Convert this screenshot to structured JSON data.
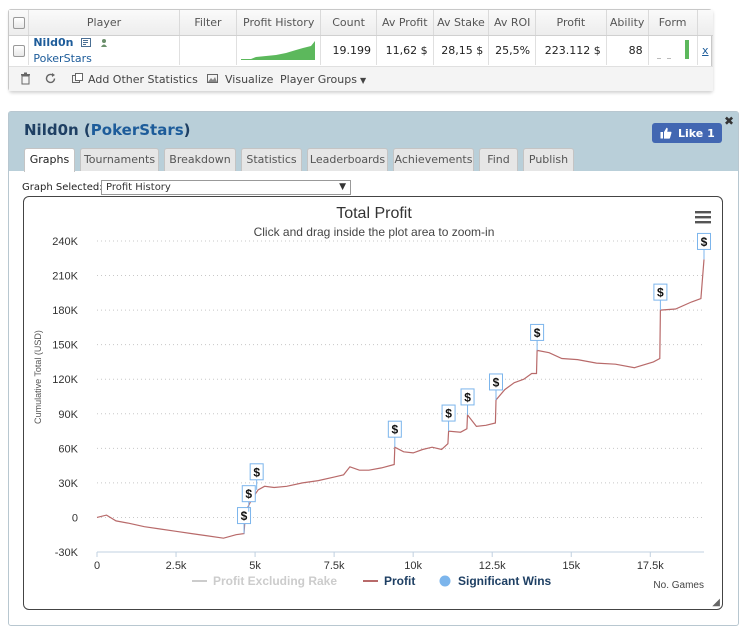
{
  "stats": {
    "columns": [
      "Player",
      "Filter",
      "Profit History",
      "Count",
      "Av Profit",
      "Av Stake",
      "Av ROI",
      "Profit",
      "Ability",
      "Form"
    ],
    "row": {
      "player_name": "Nild0n",
      "player_site": "PokerStars",
      "count": "19.199",
      "av_profit": "11,62 $",
      "av_stake": "28,15 $",
      "av_roi": "25,5%",
      "profit": "223.112 $",
      "ability": "88",
      "remove": "x"
    },
    "toolbar": {
      "add_stats": "Add Other Statistics",
      "visualize": "Visualize",
      "player_groups": "Player Groups"
    }
  },
  "panel": {
    "title_name": "Nild0n",
    "title_site": "PokerStars",
    "like_label": "Like 1",
    "close": "✖",
    "tabs": [
      "Graphs",
      "Tournaments",
      "Breakdown",
      "Statistics",
      "Leaderboards",
      "Achievements",
      "Find",
      "Publish"
    ],
    "active_tab": "Graphs",
    "graph_select_label": "Graph Selected:",
    "graph_select_value": "Profit History"
  },
  "chart_data": {
    "type": "line",
    "title": "Total Profit",
    "subtitle": "Click and drag inside the plot area to zoom-in",
    "xlabel": "No. Games",
    "ylabel": "Cumulative Total (USD)",
    "xlim": [
      0,
      19199
    ],
    "ylim": [
      -30000,
      240000
    ],
    "x_ticks": [
      0,
      2500,
      5000,
      7500,
      10000,
      12500,
      15000,
      17500
    ],
    "x_tick_labels": [
      "0",
      "2.5k",
      "5k",
      "7.5k",
      "10k",
      "12.5k",
      "15k",
      "17.5k"
    ],
    "y_ticks": [
      -30000,
      0,
      30000,
      60000,
      90000,
      120000,
      150000,
      180000,
      210000,
      240000
    ],
    "y_tick_labels": [
      "-30K",
      "0",
      "30K",
      "60K",
      "90K",
      "120K",
      "150K",
      "180K",
      "210K",
      "240K"
    ],
    "grid": true,
    "legend_position": "bottom",
    "series": [
      {
        "name": "Profit Excluding Rake",
        "color": "#cccccc",
        "hidden": true,
        "x": [],
        "y": []
      },
      {
        "name": "Profit",
        "color": "#b86a6a",
        "x": [
          0,
          300,
          600,
          1000,
          1500,
          2000,
          2500,
          3000,
          3500,
          4000,
          4400,
          4650,
          4700,
          4900,
          5100,
          5300,
          5600,
          6000,
          6500,
          7000,
          7500,
          7800,
          8000,
          8300,
          8600,
          9000,
          9400,
          9420,
          9700,
          10000,
          10300,
          10600,
          10900,
          11100,
          11120,
          11500,
          11700,
          11720,
          12000,
          12300,
          12600,
          12620,
          12900,
          13200,
          13500,
          13750,
          13900,
          13920,
          14300,
          14700,
          15200,
          15800,
          16400,
          17000,
          17600,
          17800,
          17820,
          18300,
          18800,
          19100,
          19199
        ],
        "y": [
          0,
          2000,
          -3000,
          -5000,
          -8000,
          -10000,
          -12000,
          -14000,
          -16000,
          -18000,
          -15000,
          -14000,
          5000,
          16000,
          24000,
          27000,
          26000,
          27000,
          30000,
          32000,
          35000,
          37000,
          44000,
          41000,
          41000,
          43000,
          46000,
          61000,
          57000,
          56000,
          59000,
          61000,
          59000,
          64000,
          75000,
          74000,
          77000,
          89000,
          79000,
          80000,
          82000,
          102000,
          111000,
          117000,
          120000,
          125000,
          125000,
          145000,
          143000,
          138000,
          137000,
          134000,
          133000,
          130000,
          135000,
          138000,
          180000,
          181000,
          187000,
          190000,
          224000
        ]
      },
      {
        "name": "Significant Wins",
        "color": "#7cb5ec",
        "marker_label": "$",
        "x": [
          4650,
          4800,
          5050,
          9420,
          11120,
          11720,
          12620,
          13920,
          17820,
          19199
        ],
        "y": [
          -14000,
          5000,
          24000,
          61000,
          75000,
          89000,
          102000,
          145000,
          180000,
          224000
        ]
      }
    ]
  },
  "colors": {
    "accent": "#1d5c9a",
    "header_bg": "#b9cfd9",
    "facebook": "#4267b2",
    "form_bar": "#5cb85c"
  }
}
